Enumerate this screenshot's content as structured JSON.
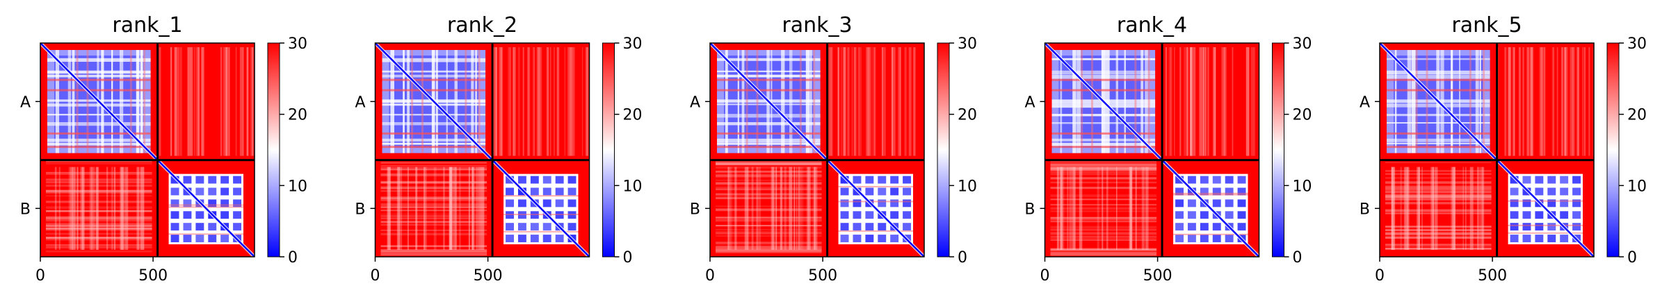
{
  "chart_data": {
    "type": "heatmap",
    "colormap": {
      "name": "bwr",
      "colors": [
        "#0000ff",
        "#ffffff",
        "#ff0000"
      ]
    },
    "vmin": 0,
    "vmax": 30,
    "colorbar_ticks": [
      "0",
      "10",
      "20",
      "30"
    ],
    "x_ticks": [
      {
        "value": 0,
        "label": "0"
      },
      {
        "value": 500,
        "label": "500"
      }
    ],
    "xlim": [
      0,
      950
    ],
    "chain_boundary": 520,
    "chains": [
      {
        "label": "A",
        "start": 0,
        "end": 520
      },
      {
        "label": "B",
        "start": 520,
        "end": 950
      }
    ],
    "panels": [
      {
        "title": "rank_1"
      },
      {
        "title": "rank_2"
      },
      {
        "title": "rank_3"
      },
      {
        "title": "rank_4"
      },
      {
        "title": "rank_5"
      }
    ]
  }
}
